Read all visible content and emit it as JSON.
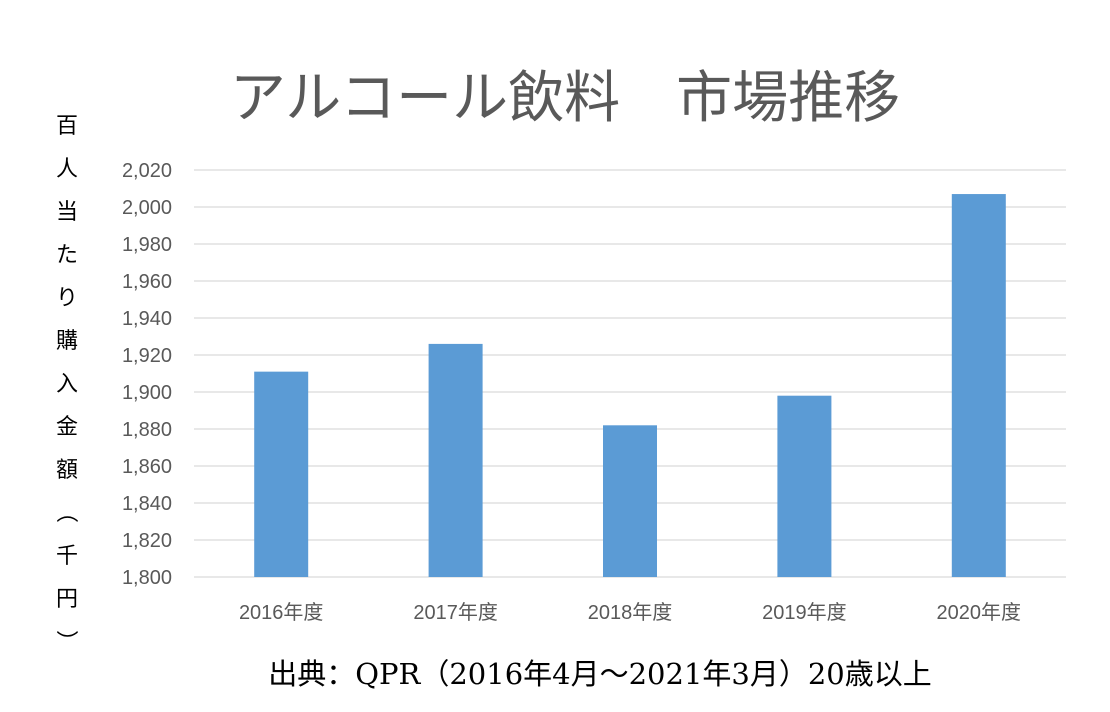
{
  "chart_data": {
    "type": "bar",
    "title": "アルコール飲料　市場推移",
    "ylabel": "百人当たり購入金額（千円）",
    "xlabel": "",
    "categories": [
      "2016年度",
      "2017年度",
      "2018年度",
      "2019年度",
      "2020年度"
    ],
    "values": [
      1911,
      1926,
      1882,
      1898,
      2007
    ],
    "ylim": [
      1800,
      2020
    ],
    "yticks": [
      "1,800",
      "1,820",
      "1,840",
      "1,860",
      "1,880",
      "1,900",
      "1,920",
      "1,940",
      "1,960",
      "1,980",
      "2,000",
      "2,020"
    ],
    "grid": true,
    "legend": "none",
    "bar_color": "#5b9bd5",
    "source": "出典：QPR（2016年4月～2021年3月）20歳以上"
  }
}
